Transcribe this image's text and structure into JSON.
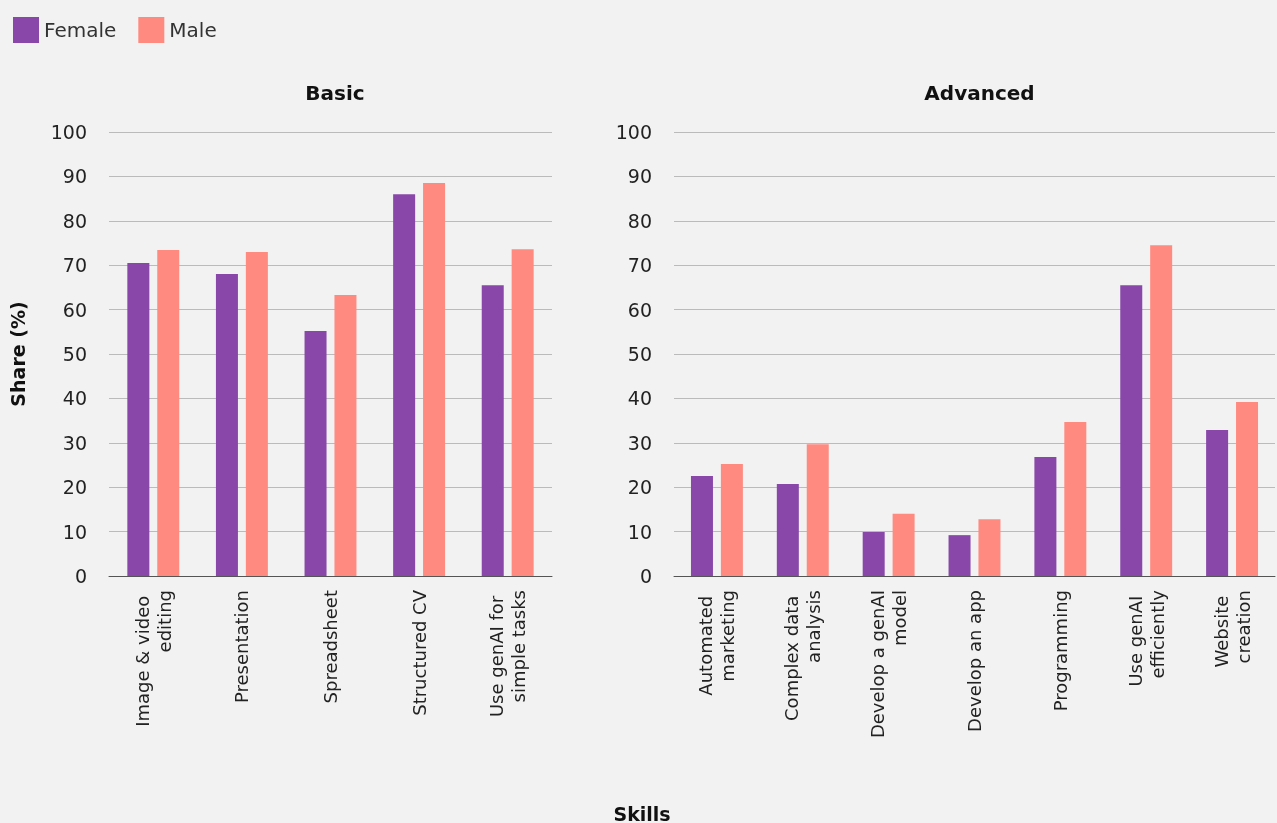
{
  "chart_data": [
    {
      "type": "bar",
      "title": "Basic",
      "ylabel": "Share (%)",
      "categories": [
        "Image & video editing",
        "Presentation",
        "Spreadsheet",
        "Structured CV",
        "Use genAI for simple tasks"
      ],
      "series": [
        {
          "name": "Female",
          "color": "#8847a9",
          "values": [
            70.5,
            68,
            55.2,
            86,
            65.5
          ]
        },
        {
          "name": "Male",
          "color": "#ff8a80",
          "values": [
            73.4,
            73,
            63.3,
            88.5,
            73.6
          ]
        }
      ],
      "ylim": [
        0,
        100
      ],
      "yticks": [
        0,
        10,
        20,
        30,
        40,
        50,
        60,
        70,
        80,
        90,
        100
      ],
      "grid": "y",
      "legend": "top left"
    },
    {
      "type": "bar",
      "title": "Advanced",
      "xlabel": "Skills",
      "categories": [
        "Automated marketing",
        "Complex data analysis",
        "Develop a genAI model",
        "Develop an app",
        "Programming",
        "Use genAI efficiently",
        "Website creation"
      ],
      "series": [
        {
          "color": "#8847a9",
          "values": [
            22.5,
            20.7,
            9.9,
            9.2,
            26.8,
            65.5,
            32.9
          ]
        },
        {
          "color": "#ff8a80",
          "values": [
            25.2,
            29.7,
            14,
            12.8,
            34.7,
            74.5,
            39.2
          ]
        }
      ],
      "ylim": [
        0,
        100
      ],
      "yticks": [
        0,
        10,
        20,
        30,
        40,
        50,
        60,
        70,
        80,
        90,
        100
      ],
      "grid": "y",
      "legend": false
    }
  ]
}
